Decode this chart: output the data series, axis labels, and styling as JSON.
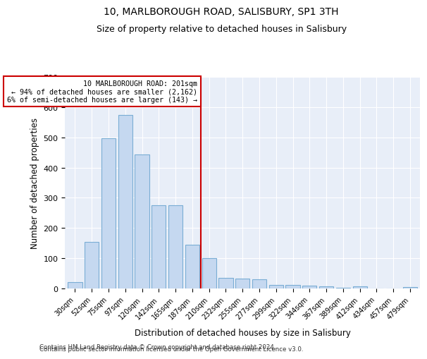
{
  "title": "10, MARLBOROUGH ROAD, SALISBURY, SP1 3TH",
  "subtitle": "Size of property relative to detached houses in Salisbury",
  "xlabel": "Distribution of detached houses by size in Salisbury",
  "ylabel": "Number of detached properties",
  "bar_labels": [
    "30sqm",
    "52sqm",
    "75sqm",
    "97sqm",
    "120sqm",
    "142sqm",
    "165sqm",
    "187sqm",
    "210sqm",
    "232sqm",
    "255sqm",
    "277sqm",
    "299sqm",
    "322sqm",
    "344sqm",
    "367sqm",
    "389sqm",
    "412sqm",
    "434sqm",
    "457sqm",
    "479sqm"
  ],
  "bar_values": [
    22,
    155,
    498,
    573,
    443,
    275,
    275,
    145,
    100,
    35,
    32,
    30,
    12,
    12,
    10,
    7,
    2,
    6,
    0,
    0,
    5
  ],
  "bar_color": "#c5d8f0",
  "bar_edgecolor": "#7aadd4",
  "vline_idx": 8,
  "annotation_text": "10 MARLBOROUGH ROAD: 201sqm\n← 94% of detached houses are smaller (2,162)\n6% of semi-detached houses are larger (143) →",
  "annotation_box_color": "#ffffff",
  "annotation_box_edgecolor": "#cc0000",
  "vline_color": "#cc0000",
  "ylim": [
    0,
    700
  ],
  "yticks": [
    0,
    100,
    200,
    300,
    400,
    500,
    600,
    700
  ],
  "background_color": "#e8eef8",
  "footer_line1": "Contains HM Land Registry data © Crown copyright and database right 2024.",
  "footer_line2": "Contains public sector information licensed under the Open Government Licence v3.0.",
  "title_fontsize": 10,
  "subtitle_fontsize": 9,
  "xlabel_fontsize": 8.5,
  "ylabel_fontsize": 8.5
}
